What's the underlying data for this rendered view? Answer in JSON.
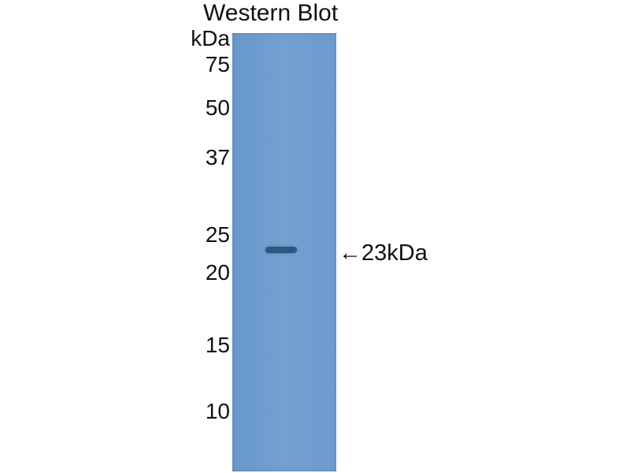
{
  "title": "Western Blot",
  "unit_label": "kDa",
  "markers": [
    "75",
    "50",
    "37",
    "25",
    "20",
    "15",
    "10"
  ],
  "callout": {
    "arrow": "←",
    "label": "23kDa"
  },
  "colors": {
    "lane": "#6f9dcf",
    "band": "#2b587f",
    "text": "#111111"
  }
}
